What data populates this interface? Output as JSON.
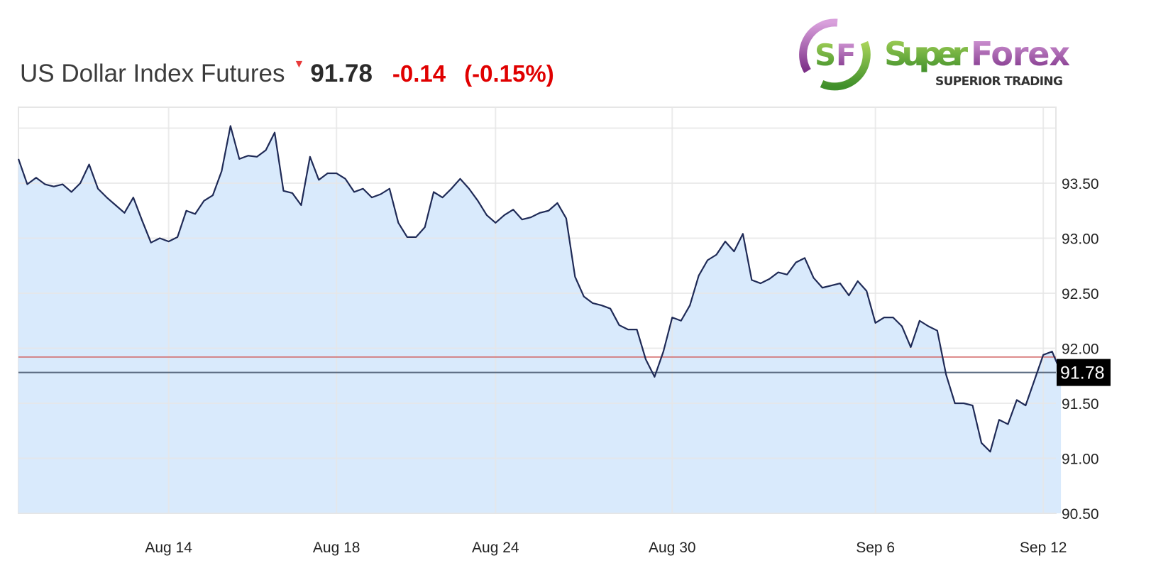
{
  "header": {
    "title": "US Dollar Index Futures",
    "direction_icon": "down-arrow-icon",
    "price": "91.78",
    "change": "-0.14",
    "change_pct": "(-0.15%)",
    "change_color": "#e00000"
  },
  "logo": {
    "brand": "SuperForex",
    "tagline": "SUPERIOR TRADING",
    "mark": "SF"
  },
  "chart_data": {
    "type": "area",
    "title": "",
    "xlabel": "",
    "ylabel": "",
    "ylim": [
      90.5,
      94.2
    ],
    "grid": true,
    "y_ticks": [
      "93.50",
      "93.00",
      "92.50",
      "92.00",
      "91.50",
      "91.00",
      "90.50"
    ],
    "y_tick_values": [
      93.5,
      93.0,
      92.5,
      92.0,
      91.5,
      91.0,
      90.5
    ],
    "x_ticks": [
      {
        "label": "Aug 14",
        "index": 17
      },
      {
        "label": "Aug 18",
        "index": 36
      },
      {
        "label": "Aug 24",
        "index": 54
      },
      {
        "label": "Aug 30",
        "index": 74
      },
      {
        "label": "Sep 6",
        "index": 97
      },
      {
        "label": "Sep 12",
        "index": 116
      }
    ],
    "values": [
      93.72,
      93.49,
      93.55,
      93.49,
      93.47,
      93.49,
      93.42,
      93.5,
      93.67,
      93.45,
      93.37,
      93.3,
      93.23,
      93.37,
      93.16,
      92.96,
      93.0,
      92.97,
      93.01,
      93.25,
      93.22,
      93.34,
      93.39,
      93.61,
      94.02,
      93.72,
      93.75,
      93.74,
      93.8,
      93.96,
      93.43,
      93.41,
      93.3,
      93.74,
      93.53,
      93.59,
      93.59,
      93.54,
      93.42,
      93.45,
      93.37,
      93.4,
      93.45,
      93.14,
      93.01,
      93.01,
      93.1,
      93.42,
      93.37,
      93.45,
      93.54,
      93.45,
      93.34,
      93.21,
      93.14,
      93.21,
      93.26,
      93.17,
      93.19,
      93.23,
      93.25,
      93.32,
      93.18,
      92.65,
      92.47,
      92.41,
      92.39,
      92.36,
      92.21,
      92.17,
      92.17,
      91.9,
      91.74,
      91.97,
      92.28,
      92.25,
      92.39,
      92.66,
      92.8,
      92.85,
      92.97,
      92.88,
      93.04,
      92.62,
      92.59,
      92.63,
      92.69,
      92.67,
      92.78,
      92.82,
      92.64,
      92.55,
      92.57,
      92.59,
      92.48,
      92.61,
      92.52,
      92.23,
      92.28,
      92.28,
      92.2,
      92.01,
      92.25,
      92.2,
      92.16,
      91.76,
      91.5,
      91.5,
      91.48,
      91.14,
      91.06,
      91.35,
      91.31,
      91.53,
      91.48,
      91.71,
      91.94,
      91.97,
      91.78
    ],
    "last_price": 91.78,
    "last_price_label": "91.78",
    "previous_close": 91.92,
    "colors": {
      "line": "#1f2a56",
      "fill": "#d9eafc",
      "previous_close": "#d06060",
      "last_price": "#000000",
      "grid": "#e6e6e6"
    }
  }
}
